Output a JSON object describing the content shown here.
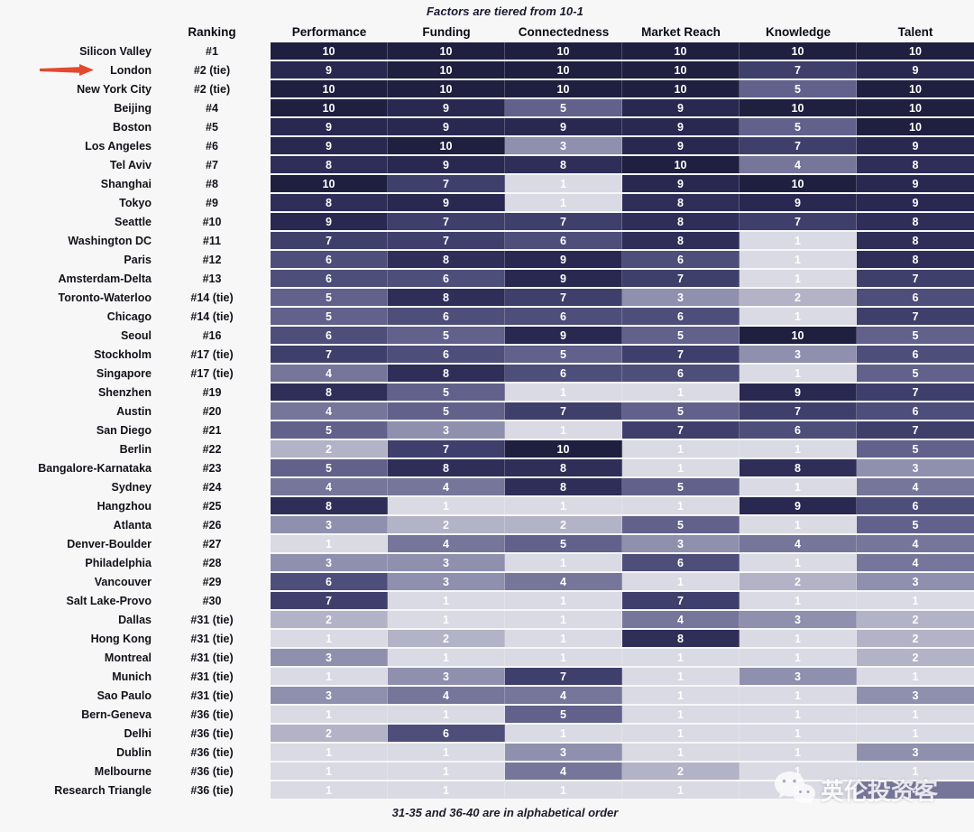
{
  "title": "Factors are tiered from 10-1",
  "footnote": "31-35 and 36-40 are in alphabetical order",
  "watermark": {
    "brand": "英伦投资客",
    "icon": "wechat-icon"
  },
  "columns": [
    "Ranking",
    "Performance",
    "Funding",
    "Connectedness",
    "Market Reach",
    "Knowledge",
    "Talent"
  ],
  "highlight": {
    "city": "London",
    "arrow_color": "#e2492f"
  },
  "tier_colors": {
    "1": "#dadae4",
    "2": "#b3b3c7",
    "3": "#8f8fae",
    "4": "#76769b",
    "5": "#61618b",
    "6": "#4e4e7a",
    "7": "#3f3f6b",
    "8": "#2e2e59",
    "9": "#282851",
    "10": "#1f1f40"
  },
  "chart_data": {
    "type": "heatmap",
    "title": "Factors are tiered from 10-1",
    "value_range": [
      1,
      10
    ],
    "factors": [
      "Performance",
      "Funding",
      "Connectedness",
      "Market Reach",
      "Knowledge",
      "Talent"
    ],
    "rows": [
      {
        "city": "Silicon Valley",
        "rank": "#1",
        "scores": [
          10,
          10,
          10,
          10,
          10,
          10
        ]
      },
      {
        "city": "London",
        "rank": "#2 (tie)",
        "scores": [
          9,
          10,
          10,
          10,
          7,
          9
        ]
      },
      {
        "city": "New York City",
        "rank": "#2 (tie)",
        "scores": [
          10,
          10,
          10,
          10,
          5,
          10
        ]
      },
      {
        "city": "Beijing",
        "rank": "#4",
        "scores": [
          10,
          9,
          5,
          9,
          10,
          10
        ]
      },
      {
        "city": "Boston",
        "rank": "#5",
        "scores": [
          9,
          9,
          9,
          9,
          5,
          10
        ]
      },
      {
        "city": "Los Angeles",
        "rank": "#6",
        "scores": [
          9,
          10,
          3,
          9,
          7,
          9
        ]
      },
      {
        "city": "Tel Aviv",
        "rank": "#7",
        "scores": [
          8,
          9,
          8,
          10,
          4,
          8
        ]
      },
      {
        "city": "Shanghai",
        "rank": "#8",
        "scores": [
          10,
          7,
          1,
          9,
          10,
          9
        ]
      },
      {
        "city": "Tokyo",
        "rank": "#9",
        "scores": [
          8,
          9,
          1,
          8,
          9,
          9
        ]
      },
      {
        "city": "Seattle",
        "rank": "#10",
        "scores": [
          9,
          7,
          7,
          8,
          7,
          8
        ]
      },
      {
        "city": "Washington DC",
        "rank": "#11",
        "scores": [
          7,
          7,
          6,
          8,
          1,
          8
        ]
      },
      {
        "city": "Paris",
        "rank": "#12",
        "scores": [
          6,
          8,
          9,
          6,
          1,
          8
        ]
      },
      {
        "city": "Amsterdam-Delta",
        "rank": "#13",
        "scores": [
          6,
          6,
          9,
          7,
          1,
          7
        ]
      },
      {
        "city": "Toronto-Waterloo",
        "rank": "#14 (tie)",
        "scores": [
          5,
          8,
          7,
          3,
          2,
          6
        ]
      },
      {
        "city": "Chicago",
        "rank": "#14 (tie)",
        "scores": [
          5,
          6,
          6,
          6,
          1,
          7
        ]
      },
      {
        "city": "Seoul",
        "rank": "#16",
        "scores": [
          6,
          5,
          9,
          5,
          10,
          5
        ]
      },
      {
        "city": "Stockholm",
        "rank": "#17 (tie)",
        "scores": [
          7,
          6,
          5,
          7,
          3,
          6
        ]
      },
      {
        "city": "Singapore",
        "rank": "#17 (tie)",
        "scores": [
          4,
          8,
          6,
          6,
          1,
          5
        ]
      },
      {
        "city": "Shenzhen",
        "rank": "#19",
        "scores": [
          8,
          5,
          1,
          1,
          9,
          7
        ]
      },
      {
        "city": "Austin",
        "rank": "#20",
        "scores": [
          4,
          5,
          7,
          5,
          7,
          6
        ]
      },
      {
        "city": "San Diego",
        "rank": "#21",
        "scores": [
          5,
          3,
          1,
          7,
          6,
          7
        ]
      },
      {
        "city": "Berlin",
        "rank": "#22",
        "scores": [
          2,
          7,
          10,
          1,
          1,
          5
        ]
      },
      {
        "city": "Bangalore-Karnataka",
        "rank": "#23",
        "scores": [
          5,
          8,
          8,
          1,
          8,
          3
        ]
      },
      {
        "city": "Sydney",
        "rank": "#24",
        "scores": [
          4,
          4,
          8,
          5,
          1,
          4
        ]
      },
      {
        "city": "Hangzhou",
        "rank": "#25",
        "scores": [
          8,
          1,
          1,
          1,
          9,
          6
        ]
      },
      {
        "city": "Atlanta",
        "rank": "#26",
        "scores": [
          3,
          2,
          2,
          5,
          1,
          5
        ]
      },
      {
        "city": "Denver-Boulder",
        "rank": "#27",
        "scores": [
          1,
          4,
          5,
          3,
          4,
          4
        ]
      },
      {
        "city": "Philadelphia",
        "rank": "#28",
        "scores": [
          3,
          3,
          1,
          6,
          1,
          4
        ]
      },
      {
        "city": "Vancouver",
        "rank": "#29",
        "scores": [
          6,
          3,
          4,
          1,
          2,
          3
        ]
      },
      {
        "city": "Salt Lake-Provo",
        "rank": "#30",
        "scores": [
          7,
          1,
          1,
          7,
          1,
          1
        ]
      },
      {
        "city": "Dallas",
        "rank": "#31 (tie)",
        "scores": [
          2,
          1,
          1,
          4,
          3,
          2
        ]
      },
      {
        "city": "Hong Kong",
        "rank": "#31 (tie)",
        "scores": [
          1,
          2,
          1,
          8,
          1,
          2
        ]
      },
      {
        "city": "Montreal",
        "rank": "#31 (tie)",
        "scores": [
          3,
          1,
          1,
          1,
          1,
          2
        ]
      },
      {
        "city": "Munich",
        "rank": "#31 (tie)",
        "scores": [
          1,
          3,
          7,
          1,
          3,
          1
        ]
      },
      {
        "city": "Sao Paulo",
        "rank": "#31 (tie)",
        "scores": [
          3,
          4,
          4,
          1,
          1,
          3
        ]
      },
      {
        "city": "Bern-Geneva",
        "rank": "#36 (tie)",
        "scores": [
          1,
          1,
          5,
          1,
          1,
          1
        ]
      },
      {
        "city": "Delhi",
        "rank": "#36 (tie)",
        "scores": [
          2,
          6,
          1,
          1,
          1,
          1
        ]
      },
      {
        "city": "Dublin",
        "rank": "#36 (tie)",
        "scores": [
          1,
          1,
          3,
          1,
          1,
          3
        ]
      },
      {
        "city": "Melbourne",
        "rank": "#36 (tie)",
        "scores": [
          1,
          1,
          4,
          2,
          1,
          1
        ]
      },
      {
        "city": "Research Triangle",
        "rank": "#36 (tie)",
        "scores": [
          1,
          1,
          1,
          1,
          1,
          4
        ]
      }
    ],
    "footnote": "31-35 and 36-40 are in alphabetical order",
    "layout": {
      "grid": false,
      "legend": "none",
      "darker_is_higher": true
    }
  }
}
